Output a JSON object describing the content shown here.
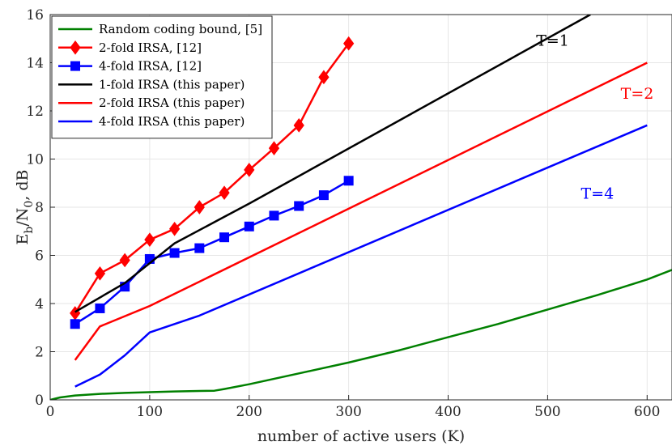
{
  "chart_data": {
    "type": "line",
    "title": "",
    "xlabel": "number of active users (K)",
    "ylabel_parts": [
      "E",
      "b",
      "/N",
      "0",
      ", dB"
    ],
    "xlim": [
      0,
      625
    ],
    "ylim": [
      0,
      16
    ],
    "xticks": [
      0,
      100,
      200,
      300,
      400,
      500,
      600
    ],
    "yticks": [
      0,
      2,
      4,
      6,
      8,
      10,
      12,
      14,
      16
    ],
    "grid": true,
    "legend_position": "top-left",
    "series": [
      {
        "name": "Random coding bound, [5]",
        "color": "#008000",
        "marker": "none",
        "points": [
          [
            0,
            0
          ],
          [
            5,
            0.05
          ],
          [
            10,
            0.1
          ],
          [
            25,
            0.18
          ],
          [
            50,
            0.25
          ],
          [
            75,
            0.29
          ],
          [
            100,
            0.32
          ],
          [
            125,
            0.35
          ],
          [
            150,
            0.37
          ],
          [
            165,
            0.38
          ],
          [
            175,
            0.45
          ],
          [
            200,
            0.65
          ],
          [
            250,
            1.1
          ],
          [
            300,
            1.55
          ],
          [
            350,
            2.05
          ],
          [
            400,
            2.6
          ],
          [
            450,
            3.15
          ],
          [
            500,
            3.75
          ],
          [
            550,
            4.35
          ],
          [
            600,
            5.0
          ],
          [
            625,
            5.4
          ]
        ]
      },
      {
        "name": "2-fold IRSA, [12]",
        "color": "#ff0000",
        "marker": "diamond",
        "points": [
          [
            25,
            3.6
          ],
          [
            50,
            5.25
          ],
          [
            75,
            5.8
          ],
          [
            100,
            6.65
          ],
          [
            125,
            7.1
          ],
          [
            150,
            8.0
          ],
          [
            175,
            8.6
          ],
          [
            200,
            9.55
          ],
          [
            225,
            10.45
          ],
          [
            250,
            11.4
          ],
          [
            275,
            13.4
          ],
          [
            300,
            14.8
          ]
        ]
      },
      {
        "name": "4-fold IRSA, [12]",
        "color": "#0000ff",
        "marker": "square",
        "points": [
          [
            25,
            3.15
          ],
          [
            50,
            3.8
          ],
          [
            75,
            4.7
          ],
          [
            100,
            5.85
          ],
          [
            125,
            6.1
          ],
          [
            150,
            6.3
          ],
          [
            175,
            6.75
          ],
          [
            200,
            7.2
          ],
          [
            225,
            7.65
          ],
          [
            250,
            8.05
          ],
          [
            275,
            8.5
          ],
          [
            300,
            9.1
          ]
        ]
      },
      {
        "name": "1-fold IRSA (this paper)",
        "color": "#000000",
        "marker": "none",
        "points": [
          [
            25,
            3.65
          ],
          [
            75,
            4.85
          ],
          [
            125,
            6.5
          ],
          [
            175,
            7.6
          ],
          [
            200,
            8.15
          ],
          [
            543,
            16
          ]
        ]
      },
      {
        "name": "2-fold IRSA (this paper)",
        "color": "#ff0000",
        "marker": "none",
        "points": [
          [
            25,
            1.65
          ],
          [
            50,
            3.05
          ],
          [
            100,
            3.9
          ],
          [
            600,
            14.0
          ]
        ]
      },
      {
        "name": "4-fold IRSA (this paper)",
        "color": "#0000ff",
        "marker": "none",
        "points": [
          [
            25,
            0.55
          ],
          [
            50,
            1.05
          ],
          [
            75,
            1.85
          ],
          [
            100,
            2.8
          ],
          [
            150,
            3.5
          ],
          [
            600,
            11.4
          ]
        ]
      }
    ],
    "annotations": [
      {
        "text": "T=1",
        "x": 505,
        "y": 14.7,
        "color": "#000000"
      },
      {
        "text": "T=2",
        "x": 590,
        "y": 12.5,
        "color": "#ff0000"
      },
      {
        "text": "T=4",
        "x": 550,
        "y": 8.35,
        "color": "#0000ff"
      }
    ]
  }
}
